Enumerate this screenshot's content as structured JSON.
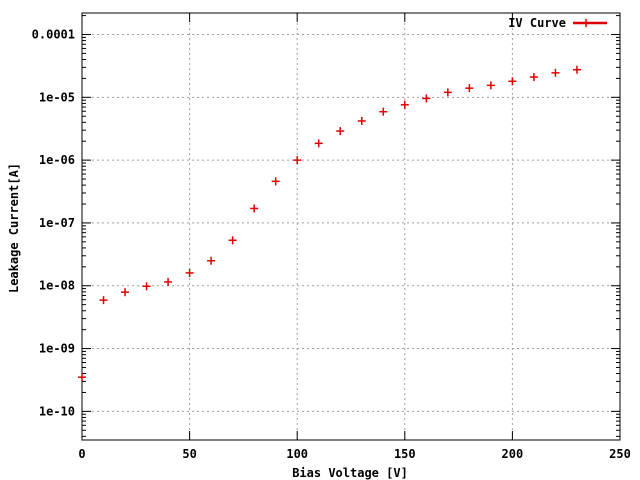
{
  "chart_data": {
    "type": "scatter",
    "xlabel": "Bias Voltage [V]",
    "ylabel": "Leakage Current[A]",
    "xlim": [
      0,
      250
    ],
    "ylim": [
      3.5e-11,
      0.00022
    ],
    "y_scale": "log",
    "grid": true,
    "legend_position": "top-right",
    "x_ticks": [
      0,
      50,
      100,
      150,
      200,
      250
    ],
    "x_tick_labels": [
      "0",
      "50",
      "100",
      "150",
      "200",
      "250"
    ],
    "y_ticks": [
      1e-10,
      1e-09,
      1e-08,
      1e-07,
      1e-06,
      1e-05,
      0.0001
    ],
    "y_tick_labels": [
      "1e-10",
      "1e-09",
      "1e-08",
      "1e-07",
      "1e-06",
      "1e-05",
      "0.0001"
    ],
    "series": [
      {
        "name": "IV Curve",
        "color": "#e00000",
        "marker": "plus",
        "x": [
          0,
          10,
          20,
          30,
          40,
          50,
          60,
          70,
          80,
          90,
          100,
          110,
          120,
          130,
          140,
          150,
          160,
          170,
          180,
          190,
          200,
          210,
          220,
          230
        ],
        "y": [
          3.5e-10,
          5.9e-09,
          7.9e-09,
          9.8e-09,
          1.15e-08,
          1.6e-08,
          2.5e-08,
          5.3e-08,
          1.7e-07,
          4.6e-07,
          1e-06,
          1.85e-06,
          2.9e-06,
          4.2e-06,
          5.9e-06,
          7.6e-06,
          9.6e-06,
          1.2e-05,
          1.4e-05,
          1.55e-05,
          1.8e-05,
          2.1e-05,
          2.45e-05,
          2.75e-05
        ]
      }
    ]
  }
}
